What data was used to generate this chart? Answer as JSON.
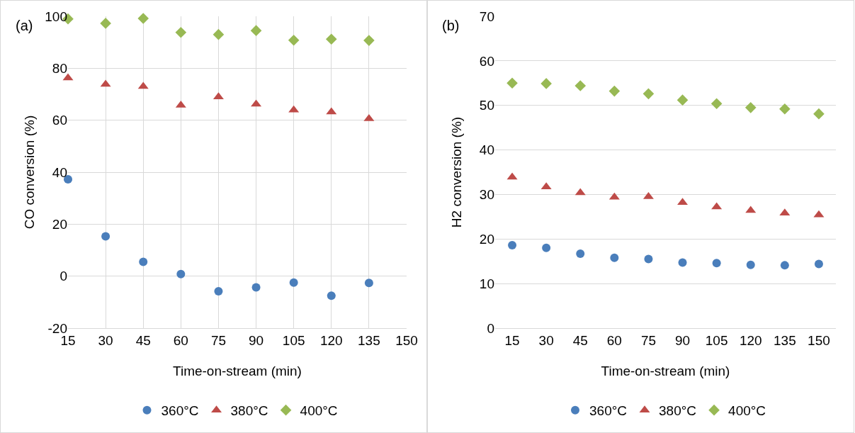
{
  "chart_data": [
    {
      "type": "scatter",
      "annotations": [
        "(a)"
      ],
      "xlabel": "Time-on-stream (min)",
      "ylabel": "CO conversion (%)",
      "x": [
        15,
        30,
        45,
        60,
        75,
        90,
        105,
        120,
        135
      ],
      "series": [
        {
          "name": "360°C",
          "color": "#4a7ebb",
          "marker": "circle",
          "values": [
            37.3,
            15.3,
            5.5,
            0.8,
            -5.8,
            -4.3,
            -2.5,
            -7.5,
            -2.6
          ]
        },
        {
          "name": "380°C",
          "color": "#be4b48",
          "marker": "triangle",
          "values": [
            76.3,
            73.8,
            73.0,
            65.8,
            69.0,
            66.2,
            63.9,
            63.2,
            60.6
          ]
        },
        {
          "name": "400°C",
          "color": "#98b954",
          "marker": "diamond",
          "values": [
            99.0,
            97.3,
            99.2,
            93.8,
            93.0,
            94.5,
            90.8,
            91.2,
            90.7
          ]
        }
      ],
      "xlim": [
        15,
        150
      ],
      "xticks": [
        15,
        30,
        45,
        60,
        75,
        90,
        105,
        120,
        135,
        150
      ],
      "ylim": [
        -20,
        100
      ],
      "yticks": [
        -20,
        0,
        20,
        40,
        60,
        80,
        100
      ],
      "grid": true,
      "legend": "bottom"
    },
    {
      "type": "scatter",
      "annotations": [
        "(b)"
      ],
      "xlabel": "Time-on-stream (min)",
      "ylabel": "H2 conversion (%)",
      "x": [
        15,
        30,
        45,
        60,
        75,
        90,
        105,
        120,
        135,
        150
      ],
      "series": [
        {
          "name": "360°C",
          "color": "#4a7ebb",
          "marker": "circle",
          "values": [
            18.6,
            18.0,
            16.7,
            15.8,
            15.5,
            14.7,
            14.6,
            14.2,
            14.1,
            14.4
          ]
        },
        {
          "name": "380°C",
          "color": "#be4b48",
          "marker": "triangle",
          "values": [
            33.9,
            31.7,
            30.4,
            29.4,
            29.5,
            28.2,
            27.2,
            26.4,
            25.8,
            25.4
          ]
        },
        {
          "name": "400°C",
          "color": "#98b954",
          "marker": "diamond",
          "values": [
            55.0,
            54.9,
            54.4,
            53.2,
            52.6,
            51.2,
            50.4,
            49.5,
            49.2,
            48.1
          ]
        }
      ],
      "xlim": [
        7.5,
        157.5
      ],
      "xticks": [
        15,
        30,
        45,
        60,
        75,
        90,
        105,
        120,
        135,
        150
      ],
      "ylim": [
        0,
        70
      ],
      "yticks": [
        0,
        10,
        20,
        30,
        40,
        50,
        60,
        70
      ],
      "grid": "y",
      "legend": "bottom"
    }
  ]
}
